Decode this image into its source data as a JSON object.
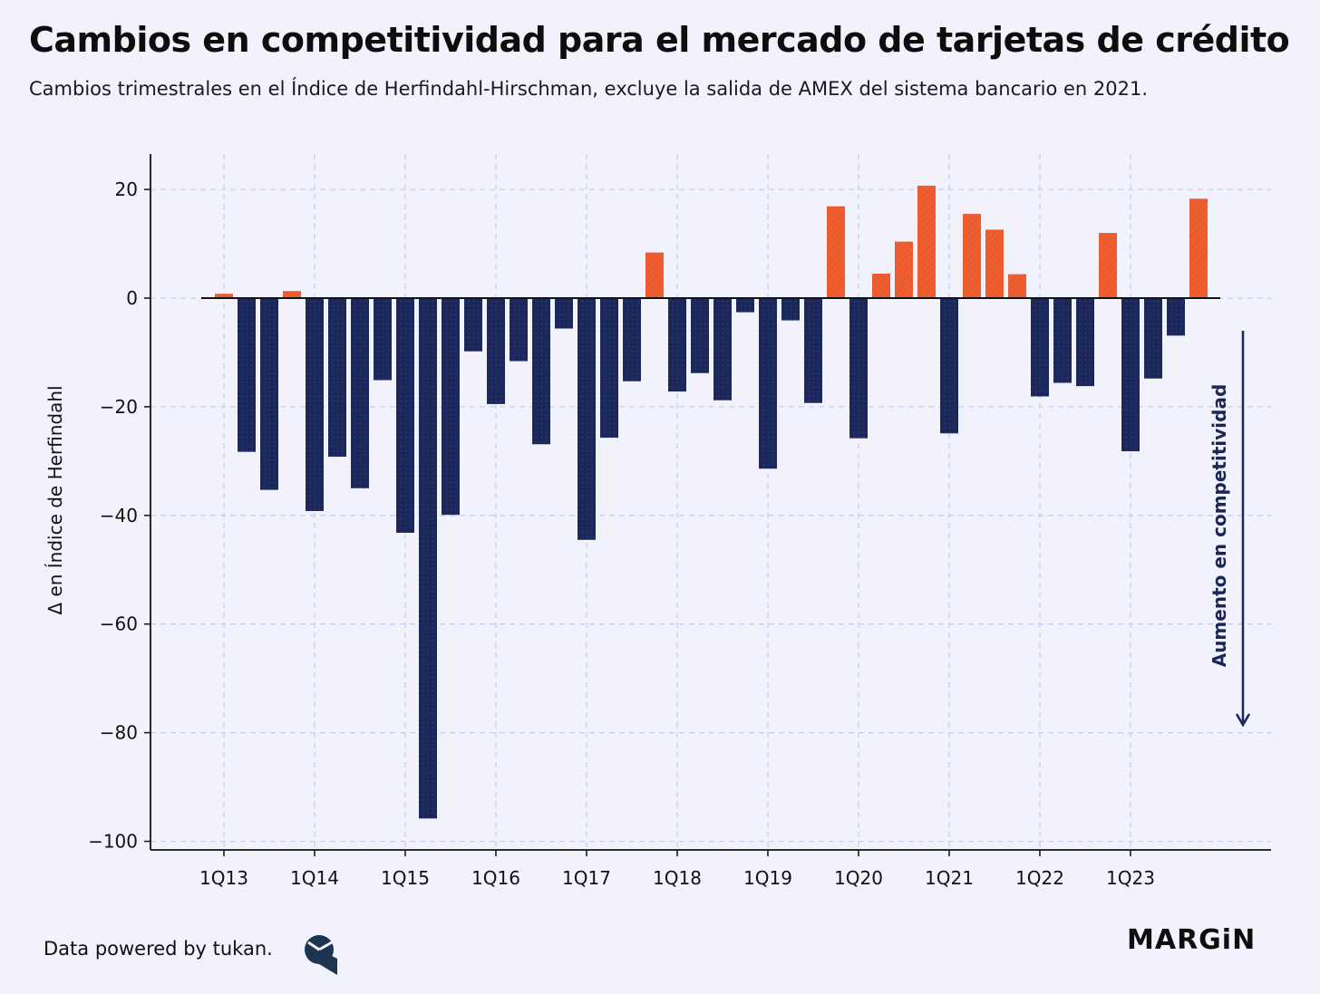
{
  "header": {
    "title": "Cambios en competitividad para el mercado de tarjetas de crédito",
    "subtitle": "Cambios trimestrales en el Índice de Herfindahl-Hirschman, excluye la salida de AMEX del sistema bancario en 2021."
  },
  "footer": {
    "credit": "Data powered by tukan.",
    "brand": "MARGiN",
    "logo_icon": "tukan-logo-icon"
  },
  "colors": {
    "background": "#f2f2fc",
    "negative_bar": "#1b2659",
    "positive_bar": "#eb5a2c",
    "grid": "#c9cdf2",
    "annotation": "#1b2659"
  },
  "chart_data": {
    "type": "bar",
    "title": "Cambios en competitividad para el mercado de tarjetas de crédito",
    "xlabel": "",
    "ylabel": "Δ en Índice de Herfindahl",
    "ylim": [
      -100,
      25
    ],
    "yticks": [
      20,
      0,
      -20,
      -40,
      -60,
      -80,
      -100
    ],
    "ytick_labels": [
      "20",
      "0",
      "−20",
      "−40",
      "−60",
      "−80",
      "−100"
    ],
    "xtick_labels": [
      "1Q13",
      "1Q14",
      "1Q15",
      "1Q16",
      "1Q17",
      "1Q18",
      "1Q19",
      "1Q20",
      "1Q21",
      "1Q22",
      "1Q23"
    ],
    "grid": true,
    "annotation": "Aumento en competitividad",
    "categories": [
      "1Q13",
      "2Q13",
      "3Q13",
      "4Q13",
      "1Q14",
      "2Q14",
      "3Q14",
      "4Q14",
      "1Q15",
      "2Q15",
      "3Q15",
      "4Q15",
      "1Q16",
      "2Q16",
      "3Q16",
      "4Q16",
      "1Q17",
      "2Q17",
      "3Q17",
      "4Q17",
      "1Q18",
      "2Q18",
      "3Q18",
      "4Q18",
      "1Q19",
      "2Q19",
      "3Q19",
      "4Q19",
      "1Q20",
      "2Q20",
      "3Q20",
      "4Q20",
      "1Q21",
      "2Q21",
      "3Q21",
      "4Q21",
      "1Q22",
      "2Q22",
      "3Q22",
      "4Q22",
      "1Q23",
      "2Q23",
      "3Q23",
      "4Q23"
    ],
    "values": [
      0.8,
      -28.3,
      -35.3,
      1.3,
      -39.2,
      -29.2,
      -35.0,
      -15.1,
      -43.2,
      -95.8,
      -39.9,
      -9.8,
      -19.5,
      -11.6,
      -26.9,
      -5.6,
      -44.5,
      -25.7,
      -15.3,
      8.4,
      -17.2,
      -13.8,
      -18.8,
      -2.6,
      -31.4,
      -4.1,
      -19.3,
      16.9,
      -25.8,
      4.5,
      10.4,
      20.7,
      -24.9,
      15.5,
      12.6,
      4.4,
      -18.1,
      -15.6,
      -16.2,
      12.0,
      -28.2,
      -14.8,
      -6.9,
      18.3
    ]
  }
}
